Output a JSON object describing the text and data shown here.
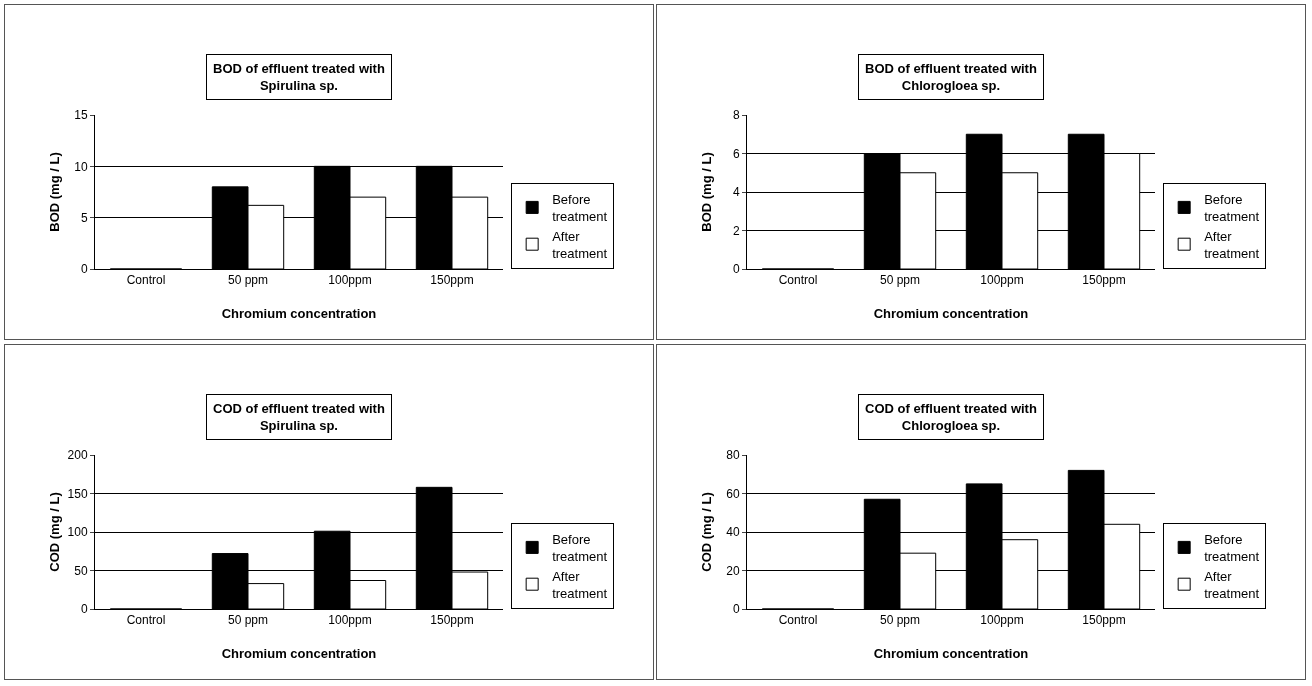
{
  "chart_data": [
    {
      "type": "bar",
      "title": "BOD of effluent treated with\nSpirulina sp.",
      "xlabel": "Chromium concentration",
      "ylabel": "BOD (mg / L)",
      "categories": [
        "Control",
        "50 ppm",
        "100ppm",
        "150ppm"
      ],
      "series": [
        {
          "name": "Before treatment",
          "color": "#000000",
          "values": [
            0,
            8,
            10,
            10
          ]
        },
        {
          "name": "After treatment",
          "color": "#ffffff",
          "values": [
            0,
            6.2,
            7,
            7
          ]
        }
      ],
      "ylim": [
        0,
        15
      ],
      "yticks": [
        0,
        5,
        10,
        15
      ],
      "grid": "y",
      "legend": "right"
    },
    {
      "type": "bar",
      "title": "BOD of effluent treated with\nChlorogloea sp.",
      "xlabel": "Chromium concentration",
      "ylabel": "BOD (mg / L)",
      "categories": [
        "Control",
        "50 ppm",
        "100ppm",
        "150ppm"
      ],
      "series": [
        {
          "name": "Before treatment",
          "color": "#000000",
          "values": [
            0,
            6,
            7,
            7
          ]
        },
        {
          "name": "After treatment",
          "color": "#ffffff",
          "values": [
            0,
            5,
            5,
            6
          ]
        }
      ],
      "ylim": [
        0,
        8
      ],
      "yticks": [
        0,
        2,
        4,
        6,
        8
      ],
      "grid": "y",
      "legend": "right"
    },
    {
      "type": "bar",
      "title": "COD of effluent treated with\nSpirulina sp.",
      "xlabel": "Chromium concentration",
      "ylabel": "COD (mg / L)",
      "categories": [
        "Control",
        "50 ppm",
        "100ppm",
        "150ppm"
      ],
      "series": [
        {
          "name": "Before treatment",
          "color": "#000000",
          "values": [
            0,
            72,
            101,
            158
          ]
        },
        {
          "name": "After treatment",
          "color": "#ffffff",
          "values": [
            0,
            33,
            37,
            48
          ]
        }
      ],
      "ylim": [
        0,
        200
      ],
      "yticks": [
        0,
        50,
        100,
        150,
        200
      ],
      "grid": "y",
      "legend": "right"
    },
    {
      "type": "bar",
      "title": "COD of effluent treated with\nChlorogloea sp.",
      "xlabel": "Chromium concentration",
      "ylabel": "COD (mg / L)",
      "categories": [
        "Control",
        "50 ppm",
        "100ppm",
        "150ppm"
      ],
      "series": [
        {
          "name": "Before treatment",
          "color": "#000000",
          "values": [
            0,
            57,
            65,
            72
          ]
        },
        {
          "name": "After treatment",
          "color": "#ffffff",
          "values": [
            0,
            29,
            36,
            44
          ]
        }
      ],
      "ylim": [
        0,
        80
      ],
      "yticks": [
        0,
        20,
        40,
        60,
        80
      ],
      "grid": "y",
      "legend": "right"
    }
  ]
}
